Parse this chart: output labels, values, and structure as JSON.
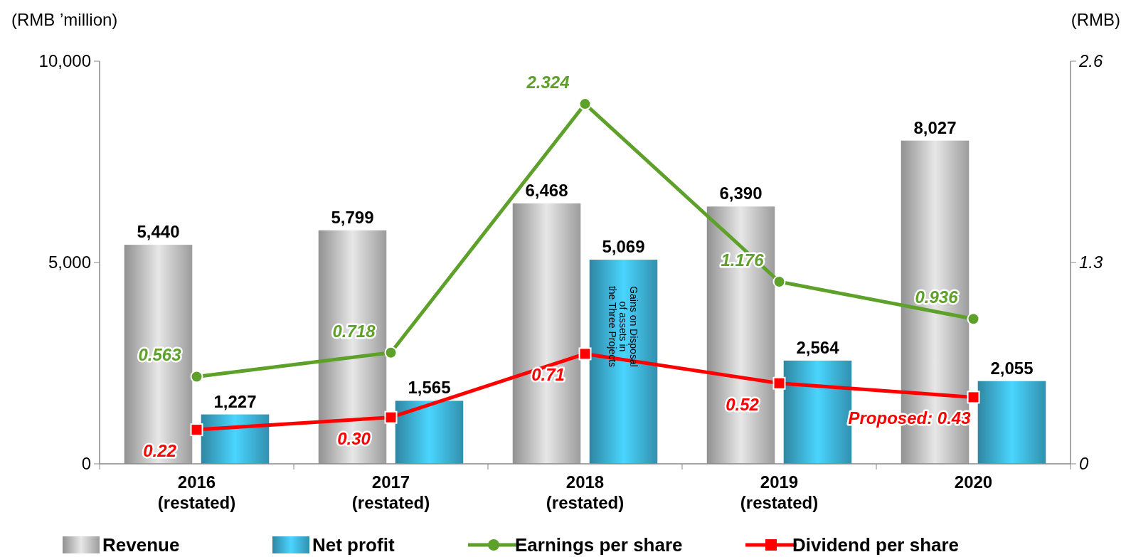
{
  "chart_data": {
    "type": "bar",
    "categories": [
      "2016 (restated)",
      "2017 (restated)",
      "2018 (restated)",
      "2019 (restated)",
      "2020"
    ],
    "ylabel": "(RMB ’million)",
    "y2label": "(RMB)",
    "ylim": [
      0,
      10000
    ],
    "yticks": [
      0,
      {
        "value": 5000,
        "label": "5,000"
      },
      {
        "value": 10000,
        "label": "10,000"
      }
    ],
    "y2lim": [
      0,
      2.6
    ],
    "y2ticks": [
      0,
      1.3,
      2.6
    ],
    "series": [
      {
        "name": "Revenue",
        "color": "#b4b4b4",
        "values": [
          5440,
          5799,
          6468,
          6390,
          8027
        ],
        "value_labels": [
          "5,440",
          "5,799",
          "6,468",
          "6,390",
          "8,027"
        ]
      },
      {
        "name": "Net profit",
        "color": "#3aa6c9",
        "values": [
          1227,
          1565,
          5069,
          2564,
          2055
        ],
        "value_labels": [
          "1,227",
          "1,565",
          "5,069",
          "2,564",
          "2,055"
        ]
      },
      {
        "name": "Earnings per share",
        "type": "line",
        "axis": "y2",
        "color": "#5ea12a",
        "marker": "circle",
        "values": [
          0.563,
          0.718,
          2.324,
          1.176,
          0.936
        ],
        "value_labels": [
          "0.563",
          "0.718",
          "2.324",
          "1.176",
          "0.936"
        ]
      },
      {
        "name": "Dividend per share",
        "type": "line",
        "axis": "y2",
        "color": "#ff0000",
        "marker": "square",
        "values": [
          0.22,
          0.3,
          0.71,
          0.52,
          0.43
        ],
        "value_labels": [
          "0.22",
          "0.30",
          "0.71",
          "0.52",
          "Proposed: 0.43"
        ]
      }
    ],
    "annotations": [
      "Gains on Disposal of assets in the Three Projects"
    ],
    "legend": "bottom",
    "grid": false
  }
}
